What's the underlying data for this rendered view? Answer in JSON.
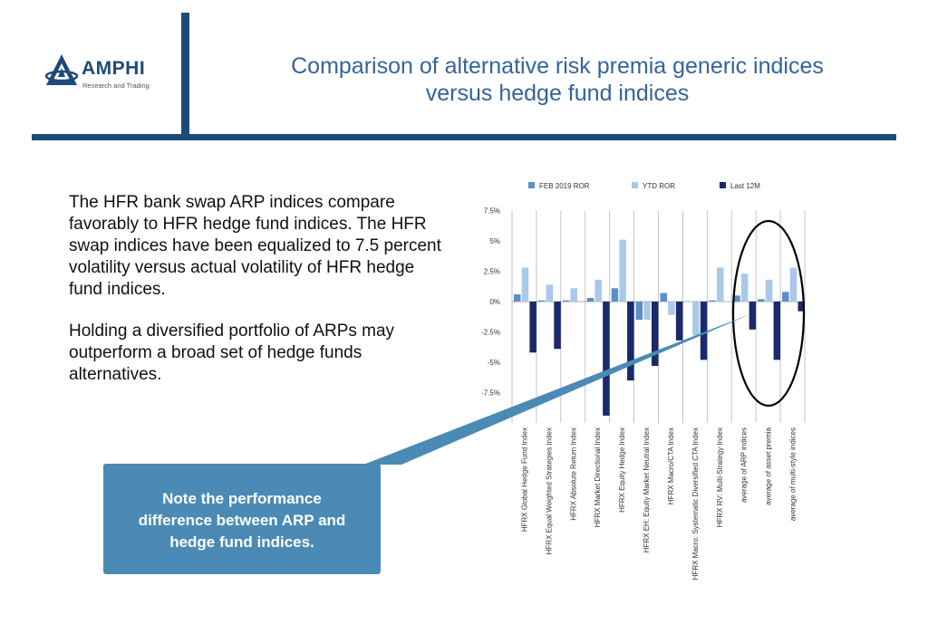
{
  "header": {
    "logo_name": "AMPHI",
    "logo_tagline": "Research and Trading",
    "title_line1": "Comparison of alternative risk premia generic indices",
    "title_line2": "versus hedge fund indices"
  },
  "body": {
    "paragraph1": "The HFR bank swap ARP indices compare favorably to HFR hedge fund indices. The HFR swap indices have been equalized to 7.5 percent volatility versus actual volatility of HFR hedge fund indices.",
    "paragraph2": "Holding a diversified portfolio of ARPs may outperform a broad set of hedge funds alternatives."
  },
  "callout": {
    "line1": "Note the performance",
    "line2": "difference between ARP and",
    "line3": "hedge fund indices."
  },
  "colors": {
    "brand": "#1d4b78",
    "title": "#34649a",
    "callout": "#4a8ab5",
    "feb": "#5b8fc6",
    "ytd": "#a9c9e8",
    "last12": "#1a2a6c"
  },
  "chart_data": {
    "type": "bar",
    "categories": [
      "HFRX Global Hedge Fund Index",
      "HFRX Equal Weighted Strategies Index",
      "HFRX Absolute Return Index",
      "HFRX Market Directional Index",
      "HFRX Equity Hedge Index",
      "HFRX EH: Equity Market Neutral Index",
      "HFRX Macro/CTA Index",
      "HFRX Macro: Systematic Diversified CTA Index",
      "HFRX RV: Multi-Strategy Index",
      "average of ARP indices",
      "average of asset premia",
      "average of multi-style indices"
    ],
    "series": [
      {
        "name": "FEB 2019 ROR",
        "values": [
          0.6,
          0.1,
          0.1,
          0.3,
          1.1,
          -1.5,
          0.7,
          0.0,
          0.1,
          0.5,
          0.2,
          0.8
        ]
      },
      {
        "name": "YTD ROR",
        "values": [
          2.8,
          1.4,
          1.1,
          1.8,
          5.1,
          -1.5,
          -1.1,
          -2.8,
          2.8,
          2.3,
          1.8,
          2.8
        ]
      },
      {
        "name": "Last 12M",
        "values": [
          -4.2,
          -3.9,
          0.0,
          -9.4,
          -6.5,
          -5.3,
          -3.2,
          -4.8,
          0.0,
          -2.3,
          -4.8,
          -0.8
        ]
      }
    ],
    "y_ticks": [
      "7.5%",
      "5%",
      "2.5%",
      "0%",
      "-2.5%",
      "-5%",
      "-7.5%"
    ],
    "ylim": [
      -10,
      7.5
    ],
    "legend_position": "top",
    "grid": "vertical"
  }
}
